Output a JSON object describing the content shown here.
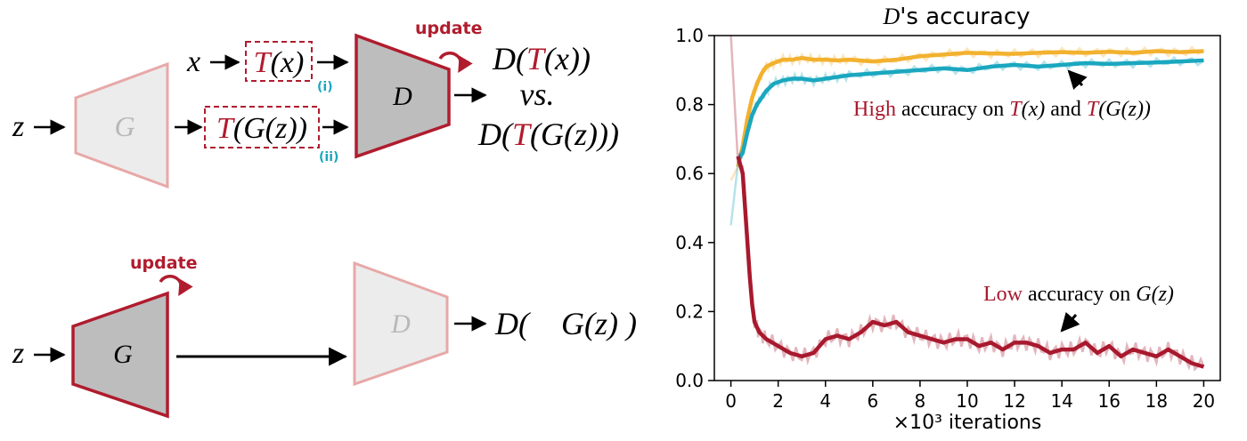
{
  "diagram": {
    "top": {
      "z_label": "z",
      "x_label": "x",
      "G_label": "G",
      "D_label": "D",
      "Tx_label": "T(x)",
      "TGz_label": "T(G(z))",
      "marker_i": "(i)",
      "marker_ii": "(ii)",
      "update_label": "update",
      "output_line1": "D(T(x))",
      "output_vs": "vs.",
      "output_line2": "D(T(G(z)))"
    },
    "bottom": {
      "z_label": "z",
      "G_label": "G",
      "D_label": "D",
      "update_label": "update",
      "output": "D(    G(z) )"
    },
    "colors": {
      "red": "#b01c2e",
      "light_red": "#e8a8a8",
      "cyan": "#1aa7bf",
      "gray_fill": "#bdbdbd",
      "light_fill": "#ececec"
    }
  },
  "chart_data": {
    "type": "line",
    "title": "D's accuracy",
    "xlabel": "×10³ iterations",
    "ylabel": "",
    "xlim": [
      -0.7,
      20.7
    ],
    "ylim": [
      0.0,
      1.0
    ],
    "xticks": [
      0,
      2,
      4,
      6,
      8,
      10,
      12,
      14,
      16,
      18,
      20
    ],
    "yticks": [
      0.0,
      0.2,
      0.4,
      0.6,
      0.8,
      1.0
    ],
    "grid": false,
    "series": [
      {
        "color": "#f2b12e",
        "x": [
          0.3,
          0.5,
          0.7,
          0.9,
          1.1,
          1.3,
          1.5,
          1.8,
          2.2,
          2.6,
          3,
          3.5,
          4,
          4.5,
          5,
          6,
          7,
          8,
          9,
          10,
          11,
          12,
          13,
          14,
          15,
          16,
          17,
          18,
          19,
          20
        ],
        "y": [
          0.62,
          0.68,
          0.76,
          0.82,
          0.86,
          0.89,
          0.91,
          0.92,
          0.93,
          0.93,
          0.935,
          0.93,
          0.93,
          0.928,
          0.93,
          0.925,
          0.93,
          0.94,
          0.945,
          0.95,
          0.948,
          0.947,
          0.95,
          0.952,
          0.95,
          0.953,
          0.95,
          0.955,
          0.952,
          0.955
        ]
      },
      {
        "color": "#1aa7bf",
        "x": [
          0.3,
          0.5,
          0.7,
          0.9,
          1.1,
          1.3,
          1.5,
          1.8,
          2.2,
          2.6,
          3,
          3.5,
          4,
          4.5,
          5,
          6,
          7,
          8,
          9,
          10,
          11,
          12,
          13,
          14,
          15,
          16,
          17,
          18,
          19,
          20
        ],
        "y": [
          0.64,
          0.66,
          0.72,
          0.77,
          0.8,
          0.82,
          0.84,
          0.86,
          0.87,
          0.875,
          0.875,
          0.87,
          0.875,
          0.88,
          0.885,
          0.89,
          0.895,
          0.9,
          0.905,
          0.9,
          0.91,
          0.915,
          0.91,
          0.915,
          0.92,
          0.918,
          0.92,
          0.922,
          0.925,
          0.928
        ]
      },
      {
        "color": "#a8192e",
        "x": [
          0.3,
          0.5,
          0.6,
          0.7,
          0.8,
          0.9,
          1.0,
          1.2,
          1.5,
          2,
          2.5,
          3,
          3.5,
          4,
          4.5,
          5,
          5.5,
          6,
          6.5,
          7,
          7.5,
          8,
          8.5,
          9,
          9.5,
          10,
          10.5,
          11,
          11.5,
          12,
          12.5,
          13,
          13.5,
          14,
          14.5,
          15,
          15.5,
          16,
          16.5,
          17,
          17.5,
          18,
          18.5,
          19,
          19.5,
          20
        ],
        "y": [
          0.65,
          0.6,
          0.5,
          0.4,
          0.3,
          0.22,
          0.17,
          0.14,
          0.12,
          0.1,
          0.08,
          0.07,
          0.08,
          0.12,
          0.13,
          0.12,
          0.14,
          0.17,
          0.16,
          0.17,
          0.14,
          0.13,
          0.12,
          0.11,
          0.12,
          0.12,
          0.1,
          0.11,
          0.09,
          0.11,
          0.11,
          0.1,
          0.08,
          0.09,
          0.09,
          0.11,
          0.08,
          0.1,
          0.07,
          0.09,
          0.08,
          0.07,
          0.09,
          0.07,
          0.05,
          0.04
        ]
      }
    ],
    "annotations": {
      "high_word": "High",
      "high_rest": " accuracy on ",
      "high_t1": "T",
      "high_x": "(x)",
      "high_and": " and ",
      "high_t2": "T",
      "high_gz": "(G(z))",
      "low_word": "Low",
      "low_rest": " accuracy on ",
      "low_gz": "G(z)"
    }
  }
}
